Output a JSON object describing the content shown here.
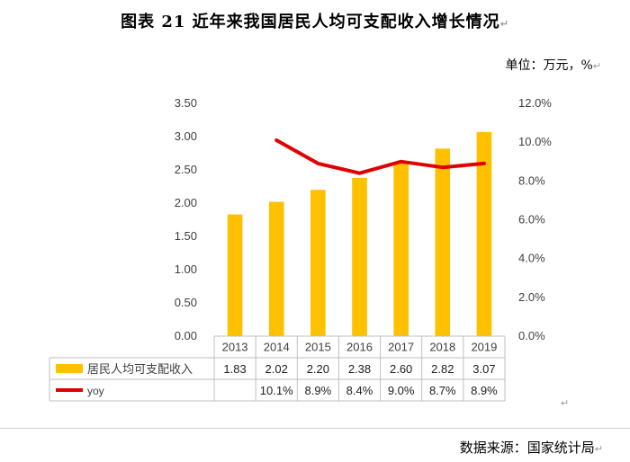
{
  "title": "图表 21 近年来我国居民人均可支配收入增长情况",
  "unit_label": "单位：万元，%",
  "source": "数据来源：国家统计局",
  "chart_data": {
    "type": "bar",
    "categories": [
      "2013",
      "2014",
      "2015",
      "2016",
      "2017",
      "2018",
      "2019"
    ],
    "series": [
      {
        "name": "居民人均可支配收入",
        "kind": "bar",
        "axis": "left",
        "color": "#FFC000",
        "values": [
          1.83,
          2.02,
          2.2,
          2.38,
          2.6,
          2.82,
          3.07
        ],
        "labels": [
          "1.83",
          "2.02",
          "2.20",
          "2.38",
          "2.60",
          "2.82",
          "3.07"
        ]
      },
      {
        "name": "yoy",
        "kind": "line",
        "axis": "right",
        "color": "#E00000",
        "values": [
          null,
          10.1,
          8.9,
          8.4,
          9.0,
          8.7,
          8.9
        ],
        "labels": [
          "",
          "10.1%",
          "8.9%",
          "8.4%",
          "9.0%",
          "8.7%",
          "8.9%"
        ]
      }
    ],
    "y_left": {
      "ylim": [
        0,
        3.5
      ],
      "ticks": [
        "0.00",
        "0.50",
        "1.00",
        "1.50",
        "2.00",
        "2.50",
        "3.00",
        "3.50"
      ]
    },
    "y_right": {
      "ylim": [
        0,
        12
      ],
      "ticks": [
        "0.0%",
        "2.0%",
        "4.0%",
        "6.0%",
        "8.0%",
        "10.0%",
        "12.0%"
      ]
    },
    "grid": false,
    "legend": "data-table"
  }
}
